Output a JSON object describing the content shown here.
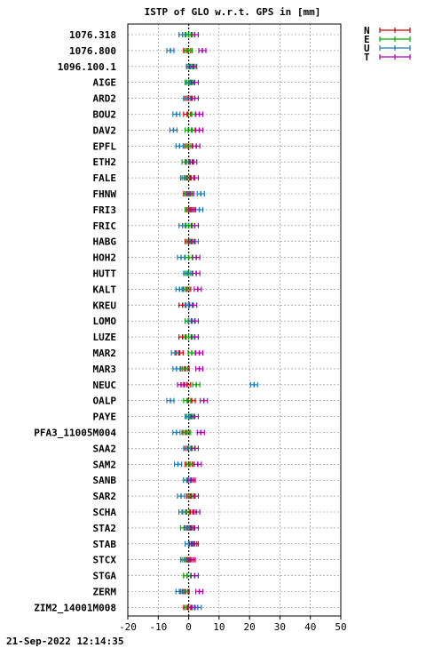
{
  "chart_data": {
    "type": "scatter",
    "title": "ISTP of GLO w.r.t. GPS in [mm]",
    "xlim": [
      -20,
      50
    ],
    "x_ticks": [
      -20,
      -10,
      0,
      10,
      20,
      30,
      40,
      50
    ],
    "grid": true,
    "legend_position": "top-right",
    "categories": [
      "1076.318",
      "1076.800",
      "1096.100.1",
      "AIGE",
      "ARD2",
      "BOU2",
      "DAV2",
      "EPFL",
      "ETH2",
      "FALE",
      "FHNW",
      "FRI3",
      "FRIC",
      "HABG",
      "HOH2",
      "HUTT",
      "KALT",
      "KREU",
      "LOMO",
      "LUZE",
      "MAR2",
      "MAR3",
      "NEUC",
      "OALP",
      "PAYE",
      "PFA3_11005M004",
      "SAA2",
      "SAM2",
      "SANB",
      "SAR2",
      "SCHA",
      "STA2",
      "STAB",
      "STCX",
      "STGA",
      "ZERM",
      "ZIM2_14001M008"
    ],
    "series": [
      {
        "name": "N",
        "color": "#cc0000",
        "values": [
          0.0,
          -0.5,
          0.5,
          0.0,
          0.0,
          -0.5,
          1.0,
          0.0,
          0.0,
          0.5,
          -0.5,
          0.5,
          0.0,
          0.0,
          0.0,
          0.0,
          -0.5,
          -2.0,
          0.0,
          -2.0,
          -3.0,
          -1.0,
          -0.5,
          1.0,
          0.0,
          -1.0,
          0.0,
          0.0,
          0.5,
          0.5,
          0.5,
          0.5,
          2.0,
          0.5,
          -0.5,
          -1.0,
          -0.5
        ]
      },
      {
        "name": "E",
        "color": "#00aa00",
        "values": [
          0.0,
          0.0,
          1.0,
          0.0,
          -0.5,
          1.0,
          0.0,
          -0.5,
          -1.0,
          -1.0,
          0.0,
          0.0,
          0.0,
          0.5,
          0.0,
          0.0,
          -1.0,
          0.0,
          0.0,
          0.0,
          1.0,
          -1.5,
          2.5,
          -0.5,
          0.5,
          -0.5,
          1.0,
          0.5,
          -0.5,
          1.0,
          -1.0,
          -1.5,
          0.0,
          -1.0,
          -0.5,
          -1.5,
          0.0
        ]
      },
      {
        "name": "U",
        "color": "#1f78b4",
        "values": [
          -2.0,
          -6.0,
          0.5,
          0.5,
          -0.5,
          -4.0,
          -5.0,
          -3.0,
          0.5,
          -1.5,
          4.0,
          3.5,
          -2.0,
          2.0,
          -2.5,
          -0.5,
          -3.0,
          0.0,
          1.0,
          2.0,
          -4.5,
          -4.0,
          21.5,
          -6.0,
          0.0,
          -4.0,
          -0.5,
          -3.5,
          -0.5,
          -2.5,
          -2.0,
          0.0,
          0.0,
          -1.5,
          2.0,
          -3.0,
          3.0
        ]
      },
      {
        "name": "T",
        "color": "#aa00aa",
        "values": [
          2.0,
          4.5,
          1.5,
          2.0,
          2.0,
          3.5,
          3.5,
          2.5,
          1.5,
          2.0,
          0.5,
          1.0,
          2.0,
          1.0,
          2.5,
          2.5,
          3.0,
          1.5,
          2.0,
          2.0,
          3.5,
          3.5,
          -2.5,
          5.0,
          2.0,
          4.0,
          2.0,
          3.0,
          1.0,
          2.0,
          2.5,
          2.0,
          1.5,
          1.0,
          2.0,
          3.5,
          1.0
        ]
      }
    ],
    "footer": "21-Sep-2022 12:14:35"
  }
}
